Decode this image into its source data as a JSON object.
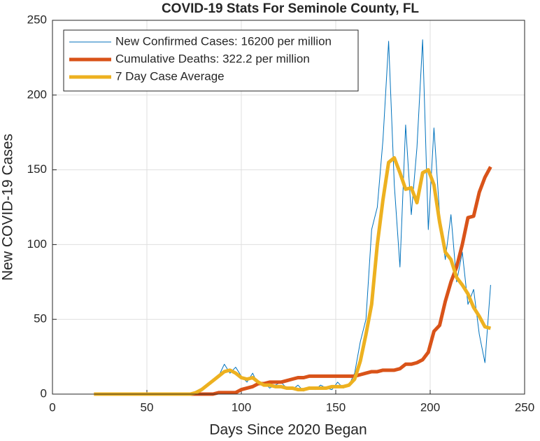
{
  "chart_data": {
    "type": "line",
    "title": "COVID-19 Stats For Seminole County, FL",
    "x_label": "Days Since 2020 Began",
    "y_label": "New COVID-19 Cases",
    "x": [
      22,
      25,
      28,
      31,
      34,
      37,
      40,
      43,
      46,
      49,
      52,
      55,
      58,
      61,
      64,
      67,
      70,
      73,
      76,
      79,
      82,
      85,
      88,
      91,
      94,
      97,
      100,
      103,
      106,
      109,
      112,
      115,
      118,
      121,
      124,
      127,
      130,
      133,
      136,
      139,
      142,
      145,
      148,
      151,
      154,
      157,
      160,
      163,
      166,
      169,
      172,
      175,
      178,
      181,
      184,
      187,
      190,
      193,
      196,
      199,
      202,
      205,
      208,
      211,
      214,
      217,
      220,
      223,
      226,
      229,
      232
    ],
    "series": [
      {
        "name": "New Confirmed Cases: 16200 per million",
        "color": "#0072BD",
        "width": 1,
        "values": [
          0,
          0,
          0,
          0,
          0,
          0,
          0,
          0,
          0,
          0,
          0,
          0,
          0,
          0,
          0,
          0,
          0,
          0,
          2,
          4,
          6,
          10,
          12,
          20,
          14,
          18,
          12,
          8,
          14,
          6,
          8,
          4,
          6,
          8,
          4,
          3,
          6,
          2,
          5,
          3,
          6,
          4,
          3,
          8,
          4,
          6,
          14,
          35,
          50,
          110,
          125,
          170,
          236,
          140,
          85,
          180,
          120,
          165,
          237,
          110,
          178,
          120,
          90,
          120,
          75,
          95,
          60,
          70,
          40,
          21,
          73
        ]
      },
      {
        "name": "Cumulative Deaths: 322.2 per million",
        "color": "#D95319",
        "width": 5,
        "values": [
          0,
          0,
          0,
          0,
          0,
          0,
          0,
          0,
          0,
          0,
          0,
          0,
          0,
          0,
          0,
          0,
          0,
          0,
          0,
          0,
          0,
          0,
          1,
          1,
          1,
          1,
          3,
          4,
          5,
          7,
          7,
          8,
          8,
          8,
          9,
          10,
          11,
          11,
          12,
          12,
          12,
          12,
          12,
          12,
          12,
          12,
          12,
          13,
          14,
          15,
          15,
          16,
          16,
          16,
          17,
          20,
          20,
          21,
          23,
          28,
          42,
          46,
          62,
          75,
          85,
          100,
          118,
          119,
          135,
          145,
          152
        ]
      },
      {
        "name": "7 Day Case Average",
        "color": "#EDB120",
        "width": 5,
        "values": [
          0,
          0,
          0,
          0,
          0,
          0,
          0,
          0,
          0,
          0,
          0,
          0,
          0,
          0,
          0,
          0,
          0,
          0,
          1,
          3,
          6,
          9,
          12,
          15,
          16,
          14,
          11,
          10,
          11,
          8,
          6,
          6,
          5,
          5,
          4,
          4,
          3,
          3,
          4,
          4,
          4,
          4,
          5,
          5,
          5,
          6,
          10,
          22,
          40,
          60,
          100,
          130,
          155,
          158,
          148,
          137,
          138,
          128,
          148,
          150,
          140,
          115,
          95,
          90,
          78,
          73,
          67,
          58,
          52,
          45,
          44
        ]
      }
    ],
    "xlim": [
      0,
      250
    ],
    "xticks": [
      0,
      50,
      100,
      150,
      200,
      250
    ],
    "ylim": [
      0,
      250
    ],
    "yticks": [
      0,
      50,
      100,
      150,
      200,
      250
    ],
    "grid": true,
    "legend": "northwest"
  }
}
